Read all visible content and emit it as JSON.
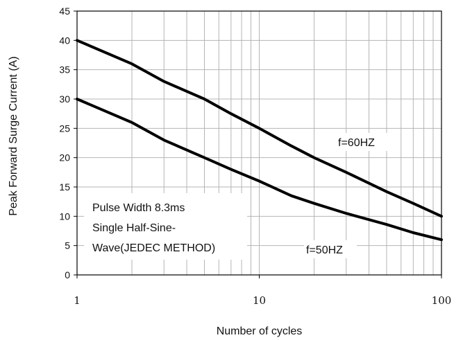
{
  "chart_data": {
    "type": "line",
    "xlabel": "Number of cycles",
    "ylabel": "Peak Forward Surge Current (A)",
    "xscale": "log",
    "xlim": [
      1,
      100
    ],
    "ylim": [
      0,
      45
    ],
    "xticks": [
      1,
      10,
      100
    ],
    "yticks": [
      0,
      5,
      10,
      15,
      20,
      25,
      30,
      35,
      40,
      45
    ],
    "grid": true,
    "series": [
      {
        "name": "f=60HZ",
        "x": [
          1,
          2,
          3,
          5,
          7,
          10,
          15,
          20,
          30,
          50,
          70,
          100
        ],
        "y": [
          40,
          36,
          33,
          30,
          27.5,
          25,
          22,
          20,
          17.5,
          14.2,
          12.2,
          10
        ],
        "color": "#000000"
      },
      {
        "name": "f=50HZ",
        "x": [
          1,
          2,
          3,
          5,
          7,
          10,
          15,
          20,
          30,
          50,
          70,
          100
        ],
        "y": [
          30,
          26,
          23,
          20,
          18,
          16,
          13.5,
          12.2,
          10.5,
          8.6,
          7.2,
          6
        ],
        "color": "#000000"
      }
    ],
    "annotation": {
      "lines": [
        "Pulse Width 8.3ms",
        "Single Half-Sine-",
        "Wave(JEDEC METHOD)"
      ]
    }
  }
}
